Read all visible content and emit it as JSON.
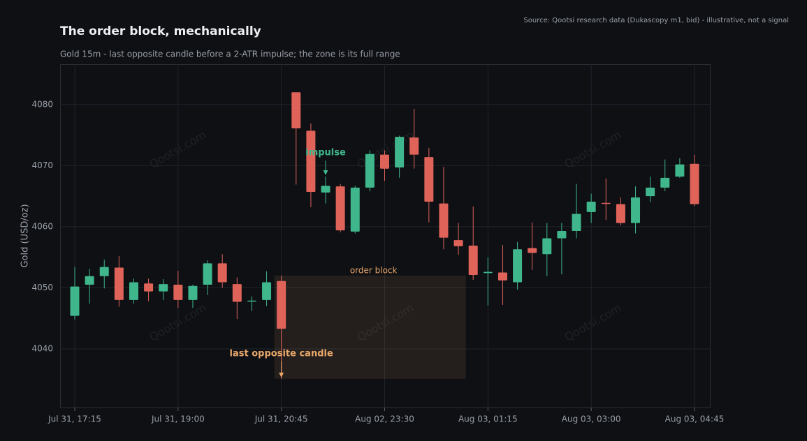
{
  "chart_data": {
    "type": "candlestick",
    "title": "The order block, mechanically",
    "subtitle": "Gold 15m - last opposite candle before a 2-ATR impulse; the zone is its full range",
    "source": "Source: Qootsi research data (Dukascopy m1, bid) - illustrative, not a signal",
    "watermark": "Qootsi.com",
    "ylabel": "Gold (USD/oz)",
    "categories": [
      "Jul 31, 17:15",
      null,
      null,
      null,
      null,
      null,
      null,
      "Jul 31, 19:00",
      null,
      null,
      null,
      null,
      null,
      null,
      "Jul 31, 20:45",
      null,
      null,
      null,
      null,
      null,
      null,
      "Aug 02, 23:30",
      null,
      null,
      null,
      null,
      null,
      null,
      "Aug 03, 01:15",
      null,
      null,
      null,
      null,
      null,
      null,
      "Aug 03, 03:00",
      null,
      null,
      null,
      null,
      null,
      null,
      "Aug 03, 04:45"
    ],
    "open": [
      4045.4,
      4050.5,
      4051.9,
      4053.3,
      4048.0,
      4050.7,
      4049.4,
      4050.5,
      4048.0,
      4050.5,
      4054.0,
      4050.6,
      4047.8,
      4048.0,
      4051.1,
      4082.0,
      4075.7,
      4065.6,
      4066.6,
      4059.2,
      4066.4,
      4071.8,
      4069.7,
      4074.6,
      4071.4,
      4063.8,
      4057.8,
      4056.9,
      4052.4,
      4052.5,
      4050.9,
      4056.5,
      4055.5,
      4058.1,
      4059.3,
      4062.4,
      4063.9,
      4063.7,
      4060.6,
      4065.0,
      4066.4,
      4068.2,
      4070.3
    ],
    "high": [
      4053.4,
      4053.1,
      4054.6,
      4055.2,
      4051.5,
      4051.5,
      4051.4,
      4052.8,
      4050.5,
      4054.5,
      4055.5,
      4051.7,
      4048.6,
      4052.7,
      4052.0,
      4082.0,
      4076.9,
      4068.2,
      4067.0,
      4066.7,
      4072.5,
      4072.5,
      4074.9,
      4079.3,
      4072.9,
      4069.8,
      4060.6,
      4063.3,
      4055.0,
      4057.0,
      4057.5,
      4060.7,
      4060.6,
      4060.6,
      4067.0,
      4065.4,
      4067.9,
      4064.8,
      4066.6,
      4068.2,
      4071.0,
      4071.2,
      4071.8
    ],
    "low": [
      4044.8,
      4047.4,
      4049.9,
      4046.9,
      4047.4,
      4047.8,
      4048.0,
      4046.7,
      4046.7,
      4048.8,
      4050.0,
      4044.9,
      4046.2,
      4047.0,
      4035.1,
      4066.9,
      4063.2,
      4063.8,
      4059.1,
      4058.9,
      4065.8,
      4067.5,
      4068.0,
      4069.5,
      4060.7,
      4056.3,
      4055.4,
      4051.3,
      4047.1,
      4047.2,
      4049.7,
      4052.9,
      4051.9,
      4052.2,
      4058.1,
      4060.6,
      4061.1,
      4060.2,
      4058.9,
      4064.0,
      4065.8,
      4068.0,
      4063.4
    ],
    "close": [
      4050.2,
      4051.9,
      4053.4,
      4048.0,
      4050.9,
      4049.4,
      4050.6,
      4048.0,
      4050.3,
      4054.0,
      4050.9,
      4047.7,
      4047.9,
      4050.9,
      4043.3,
      4076.1,
      4065.7,
      4066.7,
      4059.4,
      4066.4,
      4071.9,
      4069.5,
      4074.7,
      4071.8,
      4064.1,
      4058.2,
      4056.8,
      4052.1,
      4052.6,
      4051.2,
      4056.3,
      4055.7,
      4058.1,
      4059.3,
      4062.1,
      4064.1,
      4063.8,
      4060.6,
      4064.8,
      4066.4,
      4068.0,
      4070.2,
      4063.7
    ],
    "up_color": "#3fb68b",
    "down_color": "#e0635a",
    "zone_color": "#e8a66a",
    "ylim": [
      4030.4,
      4086.6
    ],
    "yticks": [
      4040,
      4050,
      4060,
      4070,
      4080
    ],
    "grid": true,
    "annotations": {
      "impulse": "impulse",
      "zone": "order block",
      "candle": "last opposite candle"
    }
  }
}
